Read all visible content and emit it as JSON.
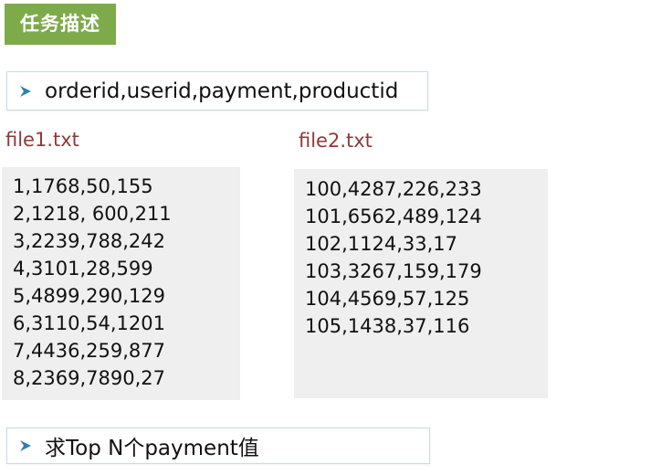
{
  "title": "任务描述",
  "fields_line": {
    "icon": "arrow-bullet-icon",
    "text": "orderid,userid,payment,productid"
  },
  "file1": {
    "name": "file1.txt",
    "lines": [
      "1,1768,50,155",
      "2,1218, 600,211",
      "3,2239,788,242",
      "4,3101,28,599",
      "5,4899,290,129",
      "6,3110,54,1201",
      "7,4436,259,877",
      "8,2369,7890,27"
    ]
  },
  "file2": {
    "name": "file2.txt",
    "lines": [
      "100,4287,226,233",
      "101,6562,489,124",
      "102,1124,33,17",
      "103,3267,159,179",
      "104,4569,57,125",
      "105,1438,37,116"
    ]
  },
  "task_line": {
    "icon": "arrow-bullet-icon",
    "text": "求Top N个payment值"
  },
  "colors": {
    "title_bg": "#7eab4a",
    "arrow": "#2f7fb4",
    "file_label": "#8c3a3a",
    "panel_bg": "#efefef"
  }
}
